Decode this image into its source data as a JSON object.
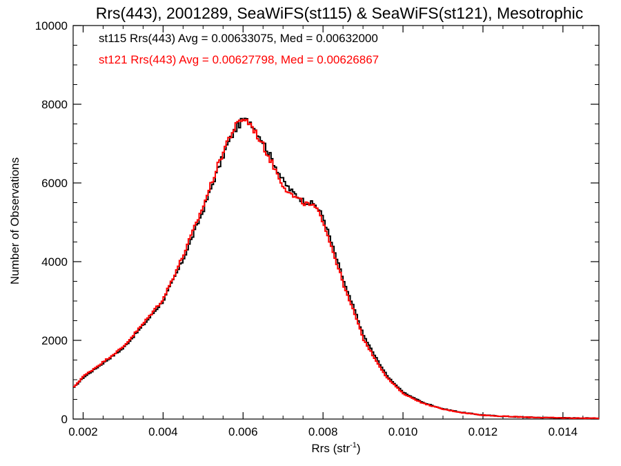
{
  "chart_data": {
    "type": "line",
    "title": "Rrs(443), 2001289, SeaWiFS(st115) & SeaWiFS(st121), Mesotrophic",
    "xlabel": "Rrs (str",
    "xlabel_sup": "-1",
    "xlabel_close": ")",
    "ylabel": "Number of Observations",
    "xlim": [
      0.00175,
      0.0149
    ],
    "ylim": [
      0,
      10000
    ],
    "xticks": [
      0.002,
      0.004,
      0.006,
      0.008,
      0.01,
      0.012,
      0.014
    ],
    "xtick_labels": [
      "0.002",
      "0.004",
      "0.006",
      "0.008",
      "0.010",
      "0.012",
      "0.014"
    ],
    "yticks": [
      0,
      2000,
      4000,
      6000,
      8000,
      10000
    ],
    "ytick_labels": [
      "0",
      "2000",
      "4000",
      "6000",
      "8000",
      "10000"
    ],
    "grid": false,
    "legend_position": "top-left",
    "x": [
      0.00175,
      0.002,
      0.0025,
      0.003,
      0.0035,
      0.004,
      0.0045,
      0.005,
      0.0053,
      0.0056,
      0.0058,
      0.006,
      0.0062,
      0.0065,
      0.0068,
      0.007,
      0.0072,
      0.0075,
      0.0078,
      0.008,
      0.0083,
      0.0086,
      0.0088,
      0.009,
      0.0093,
      0.0096,
      0.01,
      0.0105,
      0.011,
      0.0115,
      0.012,
      0.0125,
      0.013,
      0.0135,
      0.014,
      0.0149
    ],
    "series": [
      {
        "name": "st115",
        "legend": "st115 Rrs(443) Avg = 0.00633075, Med = 0.00632000",
        "color": "#000000",
        "values": [
          780,
          1050,
          1420,
          1800,
          2380,
          3000,
          4050,
          5300,
          6150,
          6950,
          7350,
          7600,
          7550,
          7050,
          6450,
          6050,
          5800,
          5550,
          5450,
          5150,
          4200,
          3250,
          2750,
          2150,
          1600,
          1100,
          680,
          420,
          260,
          165,
          100,
          70,
          50,
          38,
          28,
          20
        ]
      },
      {
        "name": "st121",
        "legend": "st121 Rrs(443) Avg = 0.00627798, Med = 0.00626867",
        "color": "#ff0000",
        "values": [
          790,
          1080,
          1450,
          1830,
          2420,
          3050,
          4150,
          5400,
          6250,
          7050,
          7420,
          7650,
          7480,
          6950,
          6350,
          5950,
          5700,
          5500,
          5380,
          5050,
          4100,
          3150,
          2650,
          2050,
          1530,
          1050,
          650,
          400,
          250,
          160,
          100,
          70,
          50,
          38,
          28,
          20
        ]
      }
    ]
  }
}
